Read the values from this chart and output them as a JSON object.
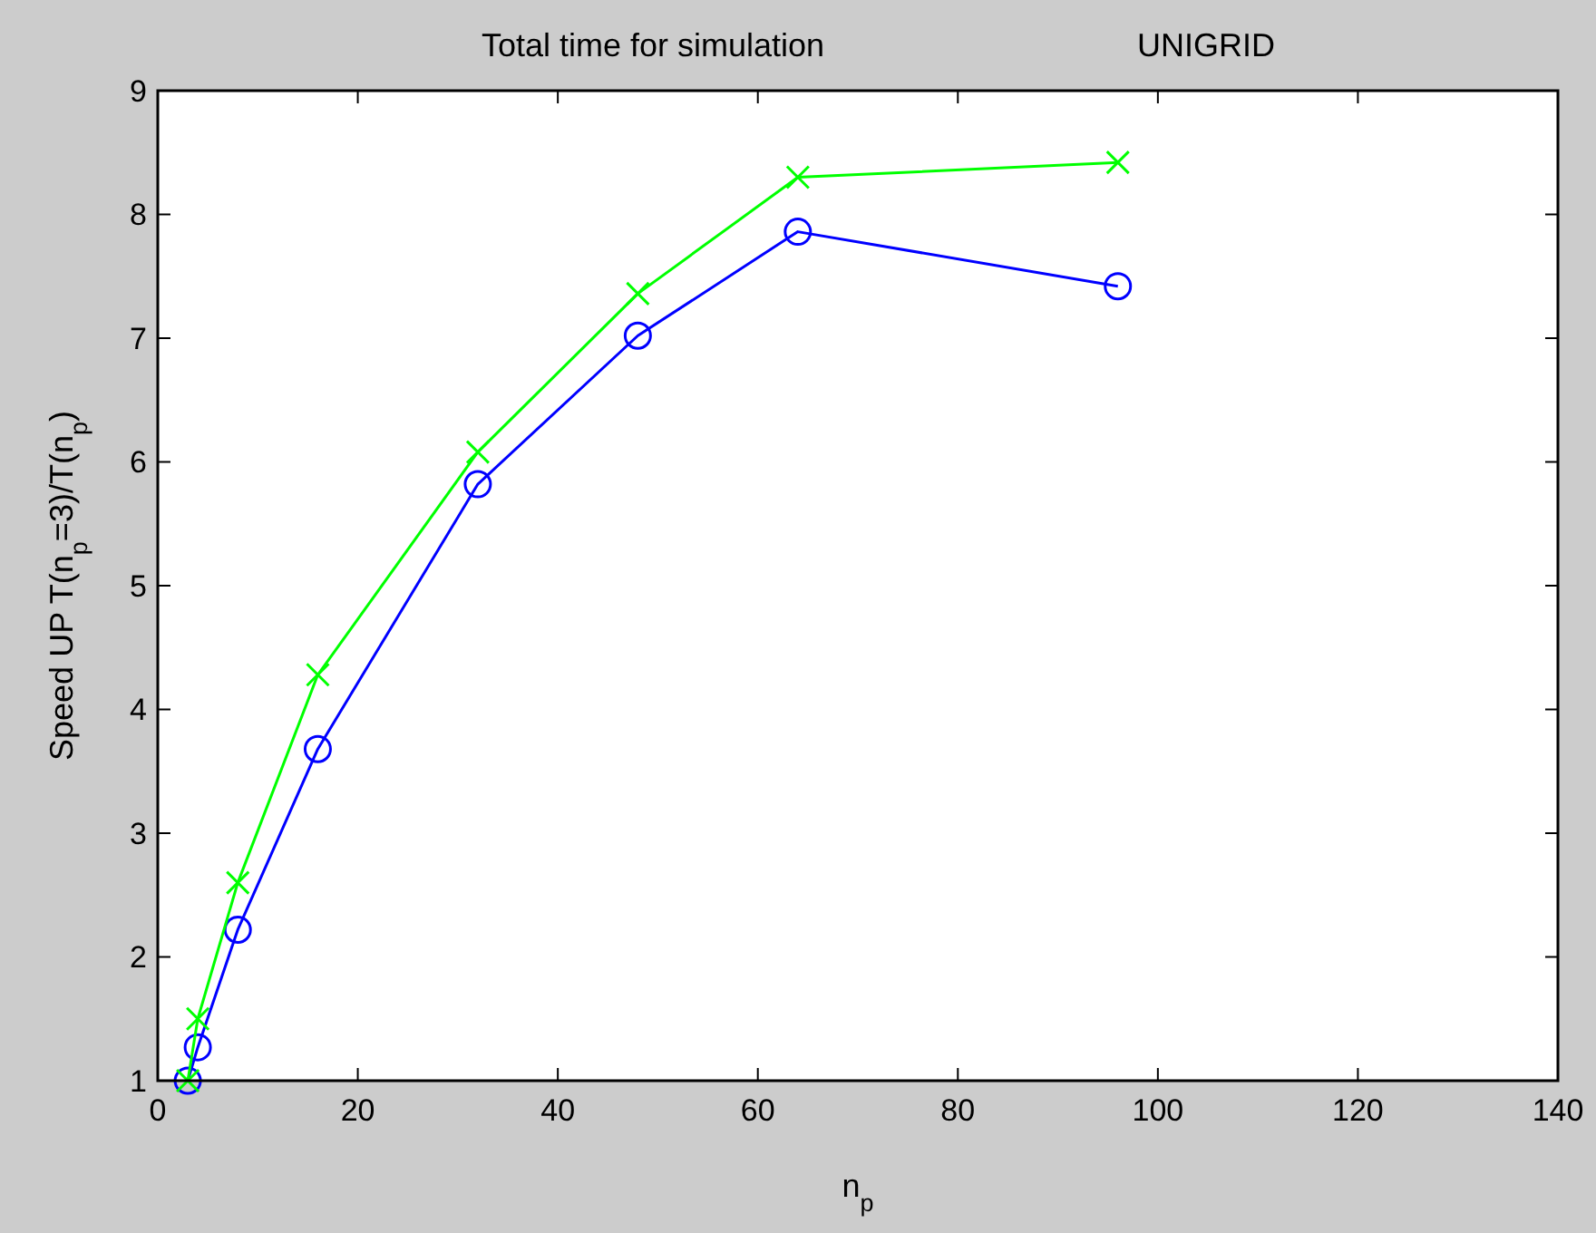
{
  "chart_data": {
    "type": "line",
    "title": "Total time for simulation",
    "subtitle": "UNIGRID",
    "xlabel": "n$_{p}$",
    "ylabel": "Speed UP T(n$_{p}$=3)/T(n$_{p}$)",
    "x": [
      3,
      4,
      8,
      16,
      32,
      48,
      64,
      96
    ],
    "series": [
      {
        "color": "#0000ff",
        "marker": "circle",
        "values": [
          1,
          1.27,
          2.22,
          3.68,
          5.82,
          7.02,
          7.86,
          7.42
        ]
      },
      {
        "color": "#00ff00",
        "marker": "cross",
        "values": [
          1,
          1.5,
          2.6,
          4.28,
          6.08,
          7.36,
          8.3,
          8.42
        ]
      }
    ],
    "xlim": [
      0,
      140
    ],
    "xticks": [
      0,
      20,
      40,
      60,
      80,
      100,
      120,
      140
    ],
    "ylim": [
      1,
      9
    ],
    "yticks": [
      1,
      2,
      3,
      4,
      5,
      6,
      7,
      8,
      9
    ],
    "line_style": "solid"
  }
}
